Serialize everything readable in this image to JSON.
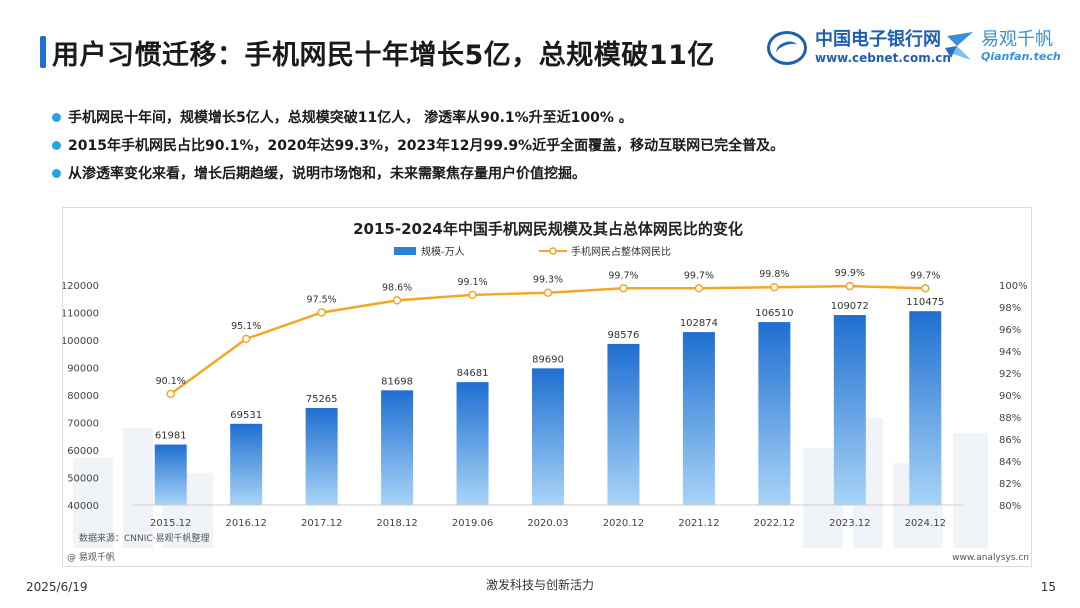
{
  "header": {
    "title": "用户习惯迁移：手机网民十年增长5亿，总规模破11亿",
    "logo1_cn": "中国电子银行网",
    "logo1_url": "www.cebnet.com.cn",
    "logo2_cn": "易观千帆",
    "logo2_en": "Qianfan.tech"
  },
  "bullets": [
    "手机网民十年间，规模增长5亿人，总规模突破11亿人， 渗透率从90.1%升至近100% 。",
    "2015年手机网民占比90.1%，2020年达99.3%，2023年12月99.9%近乎全面覆盖，移动互联网已完全普及。",
    "从渗透率变化来看，增长后期趋缓，说明市场饱和，未来需聚焦存量用户价值挖掘。"
  ],
  "chart_data": {
    "type": "bar",
    "title": "2015-2024年中国手机网民规模及其占总体网民比的变化",
    "categories": [
      "2015.12",
      "2016.12",
      "2017.12",
      "2018.12",
      "2019.06",
      "2020.03",
      "2020.12",
      "2021.12",
      "2022.12",
      "2023.12",
      "2024.12"
    ],
    "series": [
      {
        "name": "规模-万人",
        "type": "bar",
        "axis": "left",
        "color": "#2a82d8",
        "values": [
          61981,
          69531,
          75265,
          81698,
          84681,
          89690,
          98576,
          102874,
          106510,
          109072,
          110475
        ]
      },
      {
        "name": "手机网民占整体网民比",
        "type": "line",
        "axis": "right",
        "color": "#f5a623",
        "values": [
          90.1,
          95.1,
          97.5,
          98.6,
          99.1,
          99.3,
          99.7,
          99.7,
          99.8,
          99.9,
          99.7
        ],
        "labels": [
          "90.1%",
          "95.1%",
          "97.5%",
          "98.6%",
          "99.1%",
          "99.3%",
          "99.7%",
          "99.7%",
          "99.8%",
          "99.9%",
          "99.7%"
        ]
      }
    ],
    "left_axis": {
      "ylim": [
        40000,
        120000
      ],
      "ticks": [
        "40000",
        "50000",
        "60000",
        "70000",
        "80000",
        "90000",
        "100000",
        "110000",
        "120000"
      ]
    },
    "right_axis": {
      "ylim": [
        80,
        100
      ],
      "ticks": [
        "80%",
        "82%",
        "84%",
        "86%",
        "88%",
        "90%",
        "92%",
        "94%",
        "96%",
        "98%",
        "100%"
      ]
    },
    "legend_position": "top",
    "source": "数据来源：CNNIC·易观千帆整理",
    "watermark": "@ 易观千帆",
    "site": "www.analysys.cn"
  },
  "footer": {
    "date": "2025/6/19",
    "slogan": "激发科技与创新活力",
    "page": "15"
  }
}
